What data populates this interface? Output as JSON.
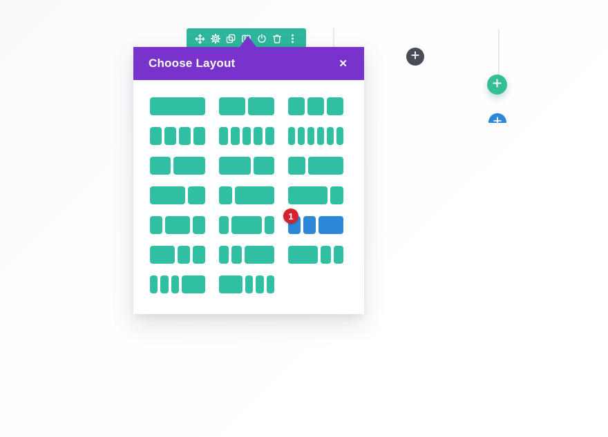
{
  "page": {
    "background": "#fdfdfe"
  },
  "colors": {
    "toolbar_teal": "#2eb69c",
    "block_teal": "#30bfa2",
    "selected_blue": "#2d87d8",
    "header_purple": "#7733cb",
    "badge_red": "#d2222e",
    "dark_circle": "#474d57",
    "green_circle": "#35bd96"
  },
  "toolbar": {
    "icons": [
      "move",
      "settings",
      "duplicate",
      "layout",
      "disable",
      "delete",
      "more-options"
    ]
  },
  "modal": {
    "title": "Choose Layout",
    "close_glyph": "✕",
    "layouts": [
      {
        "label": "1",
        "cols": [
          4
        ]
      },
      {
        "label": "1/2 1/2",
        "cols": [
          2,
          2
        ]
      },
      {
        "label": "1/3 1/3 1/3",
        "cols": [
          1,
          1,
          1
        ]
      },
      {
        "label": "1/4 1/4 1/4 1/4",
        "cols": [
          1,
          1,
          1,
          1
        ]
      },
      {
        "label": "1/5 1/5 1/5 1/5 1/5",
        "cols": [
          1,
          1,
          1,
          1,
          1
        ]
      },
      {
        "label": "1/6 1/6 1/6 1/6 1/6 1/6",
        "cols": [
          1,
          1,
          1,
          1,
          1,
          1
        ]
      },
      {
        "label": "2/5 3/5",
        "cols": [
          2,
          3
        ]
      },
      {
        "label": "3/5 2/5",
        "cols": [
          3,
          2
        ]
      },
      {
        "label": "1/3 2/3",
        "cols": [
          1,
          2
        ]
      },
      {
        "label": "2/3 1/3",
        "cols": [
          2,
          1
        ]
      },
      {
        "label": "1/4 3/4",
        "cols": [
          1,
          3
        ]
      },
      {
        "label": "3/4 1/4",
        "cols": [
          3,
          1
        ]
      },
      {
        "label": "1/4 1/2 1/4",
        "cols": [
          1,
          2,
          1
        ]
      },
      {
        "label": "1/5 3/5 1/5",
        "cols": [
          1,
          3,
          1
        ]
      },
      {
        "label": "1/4 1/4 1/2",
        "cols": [
          1,
          1,
          2
        ],
        "selected": true
      },
      {
        "label": "1/2 1/4 1/4",
        "cols": [
          2,
          1,
          1
        ]
      },
      {
        "label": "1/5 1/5 3/5",
        "cols": [
          1,
          1,
          3
        ]
      },
      {
        "label": "3/5 1/5 1/5",
        "cols": [
          3,
          1,
          1
        ]
      },
      {
        "label": "1/6 1/6 1/6 1/2",
        "cols": [
          1,
          1,
          1,
          3
        ]
      },
      {
        "label": "1/2 1/6 1/6 1/6",
        "cols": [
          3,
          1,
          1,
          1
        ]
      }
    ]
  },
  "badge": {
    "value": "1"
  },
  "floating_buttons": {
    "dark_plus": "+",
    "green_plus": "+",
    "blue_plus": "+"
  }
}
